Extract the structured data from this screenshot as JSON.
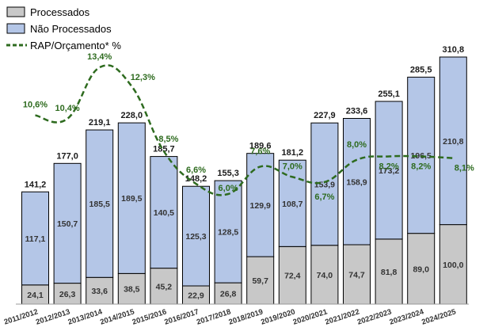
{
  "legend": {
    "processados": "Processados",
    "nao_processados": "Não Processados",
    "ratio": "RAP/Orçamento* %"
  },
  "colors": {
    "processados": "#c8c8c8",
    "nao_processados": "#b4c6e7",
    "bar_stroke": "#000000",
    "ratio_line": "#2e6b1f"
  },
  "chart_data": {
    "type": "bar",
    "stacked": true,
    "categories": [
      "2011/2012",
      "2012/2013",
      "2013/2014",
      "2014/2015",
      "2015/2016",
      "2016/2017",
      "2017/2018",
      "2018/2019",
      "2019/2020",
      "2020/2021",
      "2021/2022",
      "2022/2023",
      "2023/2024",
      "2024/2025"
    ],
    "series": [
      {
        "name": "Processados",
        "values": [
          24.1,
          26.3,
          33.6,
          38.5,
          45.2,
          22.9,
          26.8,
          59.7,
          72.4,
          74.0,
          74.7,
          81.8,
          89.0,
          100.0
        ],
        "labels": [
          "24,1",
          "26,3",
          "33,6",
          "38,5",
          "45,2",
          "22,9",
          "26,8",
          "59,7",
          "72,4",
          "74,0",
          "74,7",
          "81,8",
          "89,0",
          "100,0"
        ]
      },
      {
        "name": "Não Processados",
        "values": [
          117.1,
          150.7,
          185.5,
          189.5,
          140.5,
          125.3,
          128.5,
          129.9,
          108.7,
          153.9,
          158.9,
          173.2,
          196.5,
          210.8
        ],
        "labels": [
          "117,1",
          "150,7",
          "185,5",
          "189,5",
          "140,5",
          "125,3",
          "128,5",
          "129,9",
          "108,7",
          "153,9",
          "158,9",
          "173,2",
          "196,5",
          "210,8"
        ]
      }
    ],
    "totals": [
      141.2,
      177.0,
      219.1,
      228.0,
      185.7,
      148.2,
      155.3,
      189.6,
      181.2,
      227.9,
      233.6,
      255.1,
      285.5,
      310.8
    ],
    "total_labels": [
      "141,2",
      "177,0",
      "219,1",
      "228,0",
      "185,7",
      "148,2",
      "155,3",
      "189,6",
      "181,2",
      "227,9",
      "233,6",
      "255,1",
      "285,5",
      "310,8"
    ],
    "line": {
      "name": "RAP/Orçamento* %",
      "values": [
        10.6,
        10.4,
        13.4,
        12.3,
        8.5,
        6.6,
        6.0,
        7.6,
        7.0,
        6.7,
        8.0,
        8.2,
        8.2,
        8.1
      ],
      "labels": [
        "10,6%",
        "10,4%",
        "13,4%",
        "12,3%",
        "8,5%",
        "6,6%",
        "6,0%",
        "7,6%",
        "7,0%",
        "6,7%",
        "8,0%",
        "8,2%",
        "8,2%",
        "8,1%"
      ]
    },
    "legend_position": "top-left",
    "grid": false
  }
}
